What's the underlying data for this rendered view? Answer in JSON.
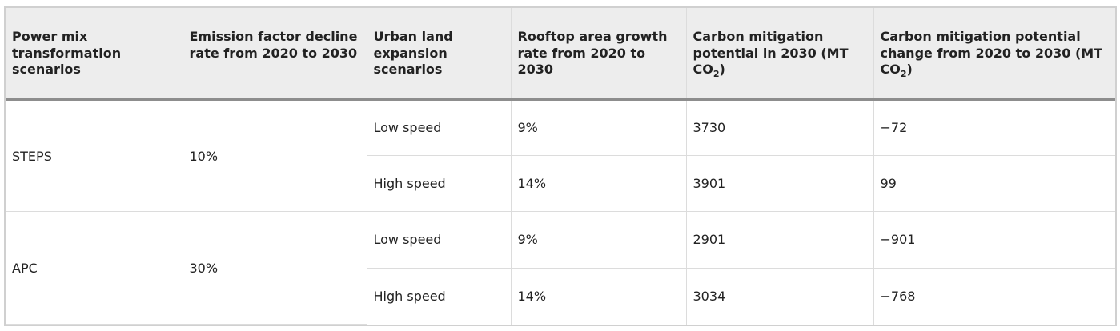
{
  "table": {
    "headers": {
      "col1": "Power mix transformation scenarios",
      "col2": "Emission factor decline rate from 2020 to 2030",
      "col3": "Urban land expansion scenarios",
      "col4": "Rooftop area growth rate from 2020 to 2030",
      "col5_main": "Carbon mitigation potential in 2030 (MT CO",
      "col5_sub": "2",
      "col5_end": ")",
      "col6_main": "Carbon mitigation potential change from 2020 to 2030 (MT CO",
      "col6_sub": "2",
      "col6_end": ")"
    },
    "groups": [
      {
        "scenario": "STEPS",
        "decline_rate": "10%",
        "rows": [
          {
            "urban": "Low speed",
            "growth": "9%",
            "potential": "3730",
            "change": "−72"
          },
          {
            "urban": "High speed",
            "growth": "14%",
            "potential": "3901",
            "change": "99"
          }
        ]
      },
      {
        "scenario": "APC",
        "decline_rate": "30%",
        "rows": [
          {
            "urban": "Low speed",
            "growth": "9%",
            "potential": "2901",
            "change": "−901"
          },
          {
            "urban": "High speed",
            "growth": "14%",
            "potential": "3034",
            "change": "−768"
          }
        ]
      }
    ]
  }
}
